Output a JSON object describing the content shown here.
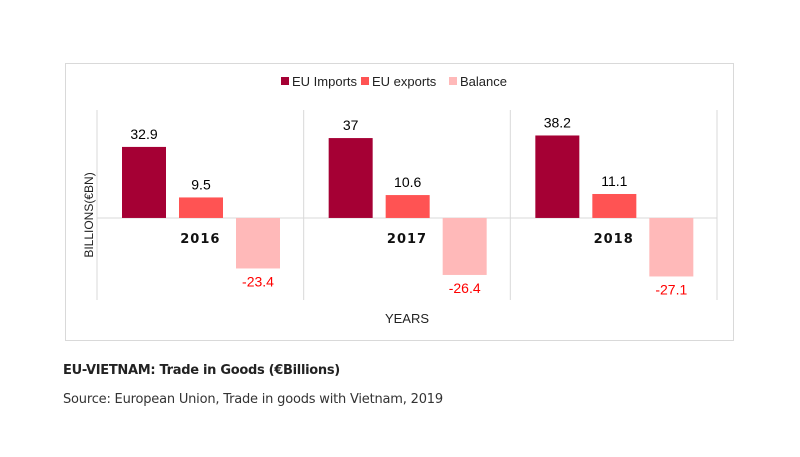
{
  "chart_data": {
    "type": "bar",
    "title": "",
    "xlabel": "YEARS",
    "ylabel": "BILLIONS(€BN)",
    "categories": [
      "2016",
      "2017",
      "2018"
    ],
    "series": [
      {
        "name": "EU Imports",
        "values": [
          32.9,
          37,
          38.2
        ],
        "color": "#a50034",
        "labels": [
          "32.9",
          "37",
          "38.2"
        ]
      },
      {
        "name": "EU exports",
        "values": [
          9.5,
          10.6,
          11.1
        ],
        "color": "#ff5353",
        "labels": [
          "9.5",
          "10.6",
          "11.1"
        ]
      },
      {
        "name": "Balance",
        "values": [
          -23.4,
          -26.4,
          -27.1
        ],
        "color": "#ffb9b9",
        "labels": [
          "-23.4",
          "-26.4",
          "-27.1"
        ]
      }
    ],
    "ylim": [
      -38,
      50
    ],
    "legend": "top",
    "grid": false,
    "negative_label_color": "#ff0000"
  },
  "caption": {
    "title": "EU-VIETNAM: Trade in Goods (€Billions)",
    "source": "Source: European Union, Trade in goods with Vietnam, 2019"
  }
}
